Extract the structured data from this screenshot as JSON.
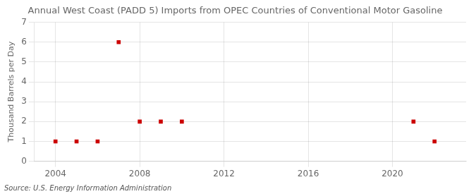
{
  "chart_data": {
    "type": "scatter",
    "title": "Annual West Coast (PADD 5) Imports from OPEC Countries of Conventional Motor Gasoline",
    "ylabel": "Thousand Barrels per Day",
    "source": "Source: U.S. Energy Information Administration",
    "x": [
      2004,
      2005,
      2006,
      2007,
      2008,
      2009,
      2010,
      2021,
      2022
    ],
    "values": [
      1,
      1,
      1,
      6,
      2,
      2,
      2,
      2,
      1
    ],
    "color": "#cc0000",
    "marker": "square",
    "xlim": [
      2003.0,
      2023.5
    ],
    "ylim": [
      0,
      7
    ],
    "xticks": [
      2004,
      2008,
      2012,
      2016,
      2020
    ],
    "yticks": [
      0,
      1,
      2,
      3,
      4,
      5,
      6,
      7
    ],
    "grid": true
  }
}
